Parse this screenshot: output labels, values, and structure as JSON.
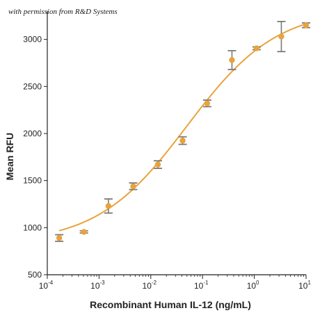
{
  "watermark": "with permission from R&D Systems",
  "chart_data": {
    "type": "scatter",
    "title": "",
    "xlabel": "Recombinant Human IL-12 (ng/mL)",
    "ylabel": "Mean RFU",
    "xscale": "log",
    "xlim": [
      0.0001,
      10
    ],
    "ylim": [
      500,
      3300
    ],
    "x_ticks": [
      {
        "base": "10",
        "exp": "-4",
        "value": 0.0001
      },
      {
        "base": "10",
        "exp": "-3",
        "value": 0.001
      },
      {
        "base": "10",
        "exp": "-2",
        "value": 0.01
      },
      {
        "base": "10",
        "exp": "-1",
        "value": 0.1
      },
      {
        "base": "10",
        "exp": "0",
        "value": 1
      },
      {
        "base": "10",
        "exp": "1",
        "value": 10
      }
    ],
    "y_ticks": [
      {
        "label": "500",
        "value": 500
      },
      {
        "label": "1000",
        "value": 1000
      },
      {
        "label": "1500",
        "value": 1500
      },
      {
        "label": "2000",
        "value": 2000
      },
      {
        "label": "2500",
        "value": 2500
      },
      {
        "label": "3000",
        "value": 3000
      }
    ],
    "grid": false,
    "series": [
      {
        "color": "#e8a33c",
        "points": [
          {
            "x": 0.00017,
            "y": 890,
            "err": 35
          },
          {
            "x": 0.00051,
            "y": 955,
            "err": 12
          },
          {
            "x": 0.00152,
            "y": 1230,
            "err": 75
          },
          {
            "x": 0.00457,
            "y": 1440,
            "err": 35
          },
          {
            "x": 0.0137,
            "y": 1670,
            "err": 40
          },
          {
            "x": 0.0412,
            "y": 1925,
            "err": 40
          },
          {
            "x": 0.123,
            "y": 2320,
            "err": 35
          },
          {
            "x": 0.37,
            "y": 2780,
            "err": 100
          },
          {
            "x": 1.11,
            "y": 2905,
            "err": 15
          },
          {
            "x": 3.33,
            "y": 3030,
            "err": 160
          },
          {
            "x": 10.0,
            "y": 3150,
            "err": 25
          }
        ],
        "fit": {
          "bottom": 830,
          "top": 3330,
          "ec50": 0.05,
          "hill": 0.5
        }
      }
    ],
    "colors": {
      "marker": "#e8a33c",
      "curve": "#e8a33c",
      "errorbar": "#7a7a7a",
      "axis": "#222222"
    }
  }
}
